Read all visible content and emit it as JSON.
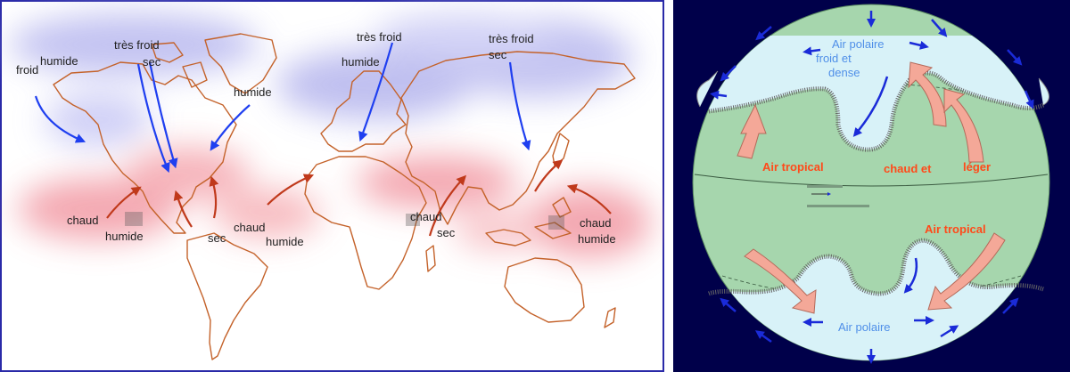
{
  "map": {
    "labels": {
      "froid": "froid",
      "humide_nw": "humide",
      "tres_froid_1": "très froid",
      "sec_1": "sec",
      "humide_canada": "humide",
      "tres_froid_2": "très froid",
      "humide_europe": "humide",
      "tres_froid_3": "très froid",
      "sec_asia": "sec",
      "chaud_pacific": "chaud",
      "humide_pacific": "humide",
      "sec_mexico": "sec",
      "chaud_atlantic": "chaud",
      "humide_atlantic": "humide",
      "chaud_india": "chaud",
      "sec_india": "sec",
      "chaud_east": "chaud",
      "humide_east": "humide"
    }
  },
  "globe": {
    "air_polaire_top": "Air polaire",
    "froid_et": "froid et",
    "dense": "dense",
    "air_tropical_left": "Air tropical",
    "chaud_et": "chaud et",
    "leger": "léger",
    "air_tropical_right": "Air tropical",
    "air_polaire_bottom": "Air polaire"
  },
  "colors": {
    "cold_arrow": "#1f3ff0",
    "warm_arrow": "#c0391b",
    "coastline": "#c4622a",
    "cold_zone": "#b8b8f0",
    "warm_zone": "#f4a0a8",
    "globe_green": "#a6d6ad",
    "polar_cap": "#d8f2f8",
    "label_blue": "#4f8fe8",
    "label_red": "#ff4a1a"
  }
}
